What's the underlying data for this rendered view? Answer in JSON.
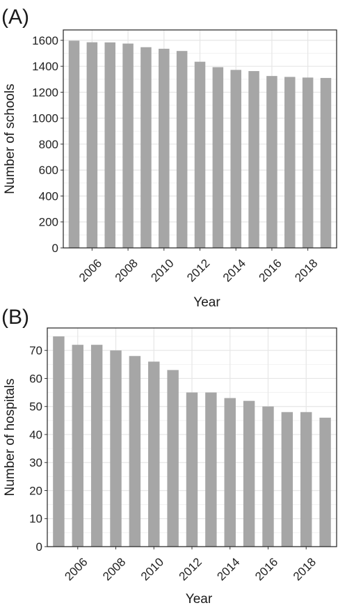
{
  "chart_data": [
    {
      "type": "bar",
      "panel_label": "(A)",
      "xlabel": "Year",
      "ylabel": "Number of schools",
      "ylim": [
        0,
        1680
      ],
      "y_ticks": [
        0,
        200,
        400,
        600,
        800,
        1000,
        1200,
        1400,
        1600
      ],
      "x_ticks": [
        2006,
        2008,
        2010,
        2012,
        2014,
        2016,
        2018
      ],
      "grid": true,
      "bar_color": "#a6a6a6",
      "categories": [
        2005,
        2006,
        2007,
        2008,
        2009,
        2010,
        2011,
        2012,
        2013,
        2014,
        2015,
        2016,
        2017,
        2018,
        2019
      ],
      "values": [
        1597,
        1585,
        1584,
        1575,
        1547,
        1535,
        1518,
        1435,
        1393,
        1372,
        1363,
        1325,
        1318,
        1313,
        1310
      ]
    },
    {
      "type": "bar",
      "panel_label": "(B)",
      "xlabel": "Year",
      "ylabel": "Number of hospitals",
      "ylim": [
        0,
        78
      ],
      "y_ticks": [
        0,
        10,
        20,
        30,
        40,
        50,
        60,
        70
      ],
      "x_ticks": [
        2006,
        2008,
        2010,
        2012,
        2014,
        2016,
        2018
      ],
      "grid": true,
      "bar_color": "#a6a6a6",
      "categories": [
        2005,
        2006,
        2007,
        2008,
        2009,
        2010,
        2011,
        2012,
        2013,
        2014,
        2015,
        2016,
        2017,
        2018,
        2019
      ],
      "values": [
        75,
        72,
        72,
        70,
        68,
        66,
        63,
        55,
        55,
        53,
        52,
        50,
        48,
        48,
        46
      ]
    }
  ]
}
